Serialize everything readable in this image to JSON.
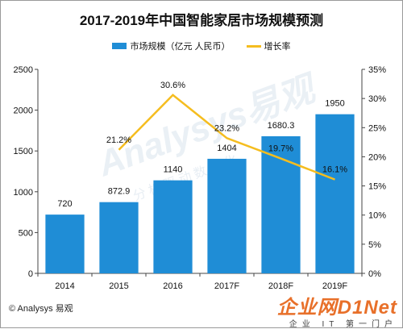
{
  "title": "2017-2019年中国智能家居市场规模预测",
  "legend": {
    "bar_label": "市场规模（亿元 人民币）",
    "line_label": "增长率"
  },
  "footer": "© Analysys 易观",
  "watermarks": {
    "background": "Analysys易观",
    "background_sub": "分析驱动数字化",
    "site_logo": "企业网D1Net",
    "site_sub": "企业 IT 第一门户"
  },
  "colors": {
    "bar": "#1f8dd6",
    "line": "#f5bd1f"
  },
  "chart_data": {
    "type": "bar",
    "categories": [
      "2014",
      "2015",
      "2016",
      "2017F",
      "2018F",
      "2019F"
    ],
    "series": [
      {
        "name": "市场规模（亿元 人民币）",
        "type": "bar",
        "axis": "left",
        "values": [
          720,
          872.9,
          1140,
          1404,
          1680.3,
          1950
        ],
        "labels": [
          "720",
          "872.9",
          "1140",
          "1404",
          "1680.3",
          "1950"
        ]
      },
      {
        "name": "增长率",
        "type": "line",
        "axis": "right",
        "values": [
          null,
          21.2,
          30.6,
          23.2,
          19.7,
          16.1
        ],
        "labels": [
          "",
          "21.2%",
          "30.6%",
          "23.2%",
          "19.7%",
          "16.1%"
        ]
      }
    ],
    "y_left": {
      "min": 0,
      "max": 2500,
      "ticks": [
        "0",
        "500",
        "1000",
        "1500",
        "2000",
        "2500"
      ]
    },
    "y_right": {
      "min": 0,
      "max": 35,
      "ticks": [
        "0%",
        "5%",
        "10%",
        "15%",
        "20%",
        "25%",
        "30%",
        "35%"
      ]
    },
    "grid": false,
    "legend_position": "top"
  }
}
